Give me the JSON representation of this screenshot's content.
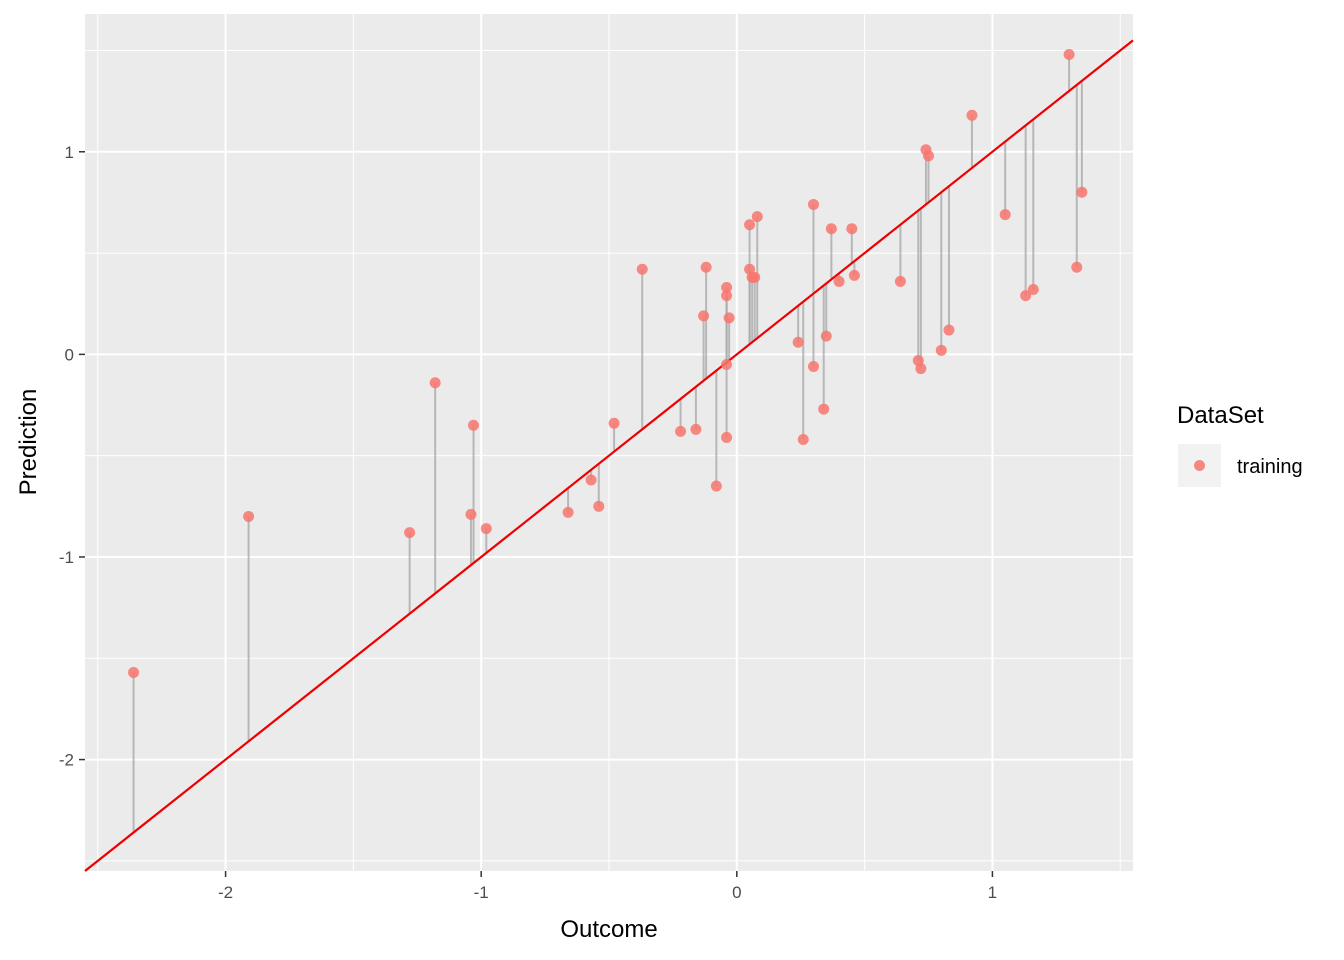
{
  "chart_data": {
    "type": "scatter",
    "xlabel": "Outcome",
    "ylabel": "Prediction",
    "xlim": [
      -2.55,
      1.55
    ],
    "ylim": [
      -2.55,
      1.68
    ],
    "x_ticks": [
      -2,
      -1,
      0,
      1
    ],
    "y_ticks": [
      -2,
      -1,
      0,
      1
    ],
    "x_tick_labels": [
      "-2",
      "-1",
      "0",
      "1"
    ],
    "y_tick_labels": [
      "-2",
      "-1",
      "0",
      "1"
    ],
    "grid": true,
    "reference_line": {
      "slope": 1,
      "intercept": 0,
      "color": "#ee0000"
    },
    "residual_segments": true,
    "legend": {
      "title": "DataSet",
      "position": "right",
      "entries": [
        {
          "label": "training",
          "color": "#f8766d"
        }
      ]
    },
    "series": [
      {
        "name": "training",
        "color": "#f8766d",
        "points": [
          [
            -2.36,
            -1.57
          ],
          [
            -1.91,
            -0.8
          ],
          [
            -1.28,
            -0.88
          ],
          [
            -1.18,
            -0.14
          ],
          [
            -1.03,
            -0.35
          ],
          [
            -1.04,
            -0.79
          ],
          [
            -0.98,
            -0.86
          ],
          [
            -0.66,
            -0.78
          ],
          [
            -0.57,
            -0.62
          ],
          [
            -0.54,
            -0.75
          ],
          [
            -0.48,
            -0.34
          ],
          [
            -0.37,
            0.42
          ],
          [
            -0.22,
            -0.38
          ],
          [
            -0.16,
            -0.37
          ],
          [
            -0.13,
            0.19
          ],
          [
            -0.12,
            0.43
          ],
          [
            -0.08,
            -0.65
          ],
          [
            -0.04,
            0.33
          ],
          [
            -0.04,
            0.29
          ],
          [
            -0.03,
            0.18
          ],
          [
            -0.04,
            -0.05
          ],
          [
            -0.04,
            -0.41
          ],
          [
            0.05,
            0.64
          ],
          [
            0.05,
            0.42
          ],
          [
            0.06,
            0.38
          ],
          [
            0.07,
            0.38
          ],
          [
            0.08,
            0.68
          ],
          [
            0.24,
            0.06
          ],
          [
            0.26,
            -0.42
          ],
          [
            0.3,
            0.74
          ],
          [
            0.3,
            -0.06
          ],
          [
            0.34,
            -0.27
          ],
          [
            0.35,
            0.09
          ],
          [
            0.37,
            0.62
          ],
          [
            0.4,
            0.36
          ],
          [
            0.45,
            0.62
          ],
          [
            0.46,
            0.39
          ],
          [
            0.64,
            0.36
          ],
          [
            0.71,
            -0.03
          ],
          [
            0.72,
            -0.07
          ],
          [
            0.74,
            1.01
          ],
          [
            0.75,
            0.98
          ],
          [
            0.8,
            0.02
          ],
          [
            0.83,
            0.12
          ],
          [
            0.92,
            1.18
          ],
          [
            1.05,
            0.69
          ],
          [
            1.13,
            0.29
          ],
          [
            1.16,
            0.32
          ],
          [
            1.3,
            1.48
          ],
          [
            1.33,
            0.43
          ],
          [
            1.35,
            0.8
          ]
        ]
      }
    ]
  }
}
